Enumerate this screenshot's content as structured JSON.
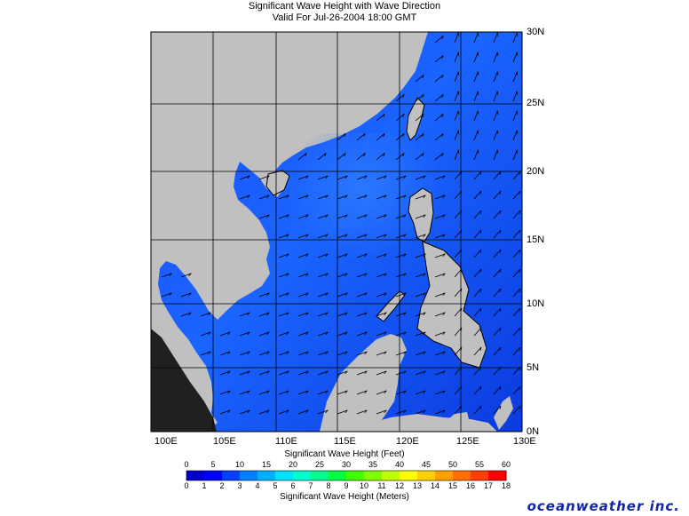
{
  "title": {
    "line1": "Significant Wave Height with Wave Direction",
    "line2": "Valid For Jul-26-2004 18:00 GMT"
  },
  "map": {
    "lon_labels": [
      "100E",
      "105E",
      "110E",
      "115E",
      "120E",
      "125E",
      "130E"
    ],
    "lat_labels": [
      "30N",
      "25N",
      "20N",
      "15N",
      "10N",
      "5N",
      "0N"
    ],
    "colors": {
      "land": "#c0c0c0",
      "sea_low": "#0b3fe0",
      "sea_mid": "#1c6bff",
      "grid": "#000000"
    }
  },
  "scale": {
    "feet_title": "Significant Wave Height (Feet)",
    "meters_title": "Significant Wave Height (Meters)",
    "feet_ticks": [
      "0",
      "5",
      "10",
      "15",
      "20",
      "25",
      "30",
      "35",
      "40",
      "45",
      "50",
      "55",
      "60"
    ],
    "meter_ticks": [
      "0",
      "1",
      "2",
      "3",
      "4",
      "5",
      "6",
      "7",
      "8",
      "9",
      "10",
      "11",
      "12",
      "13",
      "14",
      "15",
      "16",
      "17",
      "18"
    ],
    "colors": [
      "#0000c8",
      "#0000ff",
      "#0040ff",
      "#0080ff",
      "#00b0ff",
      "#00e0ff",
      "#00ffd0",
      "#00ff90",
      "#00ff40",
      "#40ff00",
      "#80ff00",
      "#c0ff00",
      "#ffff00",
      "#ffd000",
      "#ffa000",
      "#ff7000",
      "#ff4000",
      "#ff0000"
    ]
  },
  "brand": "oceanweather inc."
}
